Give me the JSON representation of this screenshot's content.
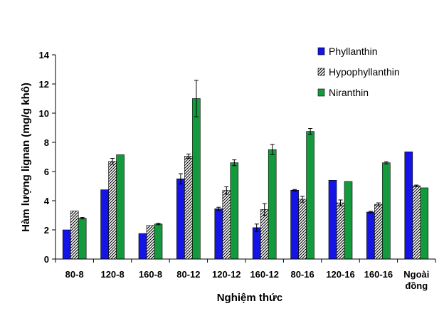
{
  "chart_data": {
    "type": "bar",
    "title": "",
    "xlabel": "Nghiệm thức",
    "ylabel": "Hàm lượng lignan (mg/g khô)",
    "ylim": [
      0,
      14
    ],
    "yticks": [
      "0",
      "2",
      "4",
      "6",
      "8",
      "10",
      "12",
      "14"
    ],
    "categories": [
      [
        "80-8"
      ],
      [
        "120-8"
      ],
      [
        "160-8"
      ],
      [
        "80-12"
      ],
      [
        "120-12"
      ],
      [
        "160-12"
      ],
      [
        "80-16"
      ],
      [
        "120-16"
      ],
      [
        "160-16"
      ],
      [
        "Ngoài",
        "đồng"
      ]
    ],
    "series": [
      {
        "name": "Phyllanthin",
        "color": "#1414e6",
        "pattern": "solid",
        "values": [
          2.0,
          4.75,
          1.75,
          5.5,
          3.45,
          2.15,
          4.72,
          5.4,
          3.22,
          7.35
        ],
        "errors": [
          0.0,
          0.0,
          0.0,
          0.35,
          0.1,
          0.25,
          0.05,
          0.0,
          0.05,
          0.0
        ]
      },
      {
        "name": "Hypophyllanthin",
        "color": "#ffffff",
        "pattern": "hatch",
        "values": [
          3.3,
          6.7,
          2.3,
          7.05,
          4.7,
          3.4,
          4.1,
          3.85,
          3.75,
          5.02
        ],
        "errors": [
          0.0,
          0.2,
          0.0,
          0.15,
          0.25,
          0.4,
          0.2,
          0.2,
          0.1,
          0.05
        ]
      },
      {
        "name": "Niranthin",
        "color": "#139a3c",
        "pattern": "solid",
        "values": [
          2.8,
          7.15,
          2.4,
          11.0,
          6.6,
          7.5,
          8.75,
          5.32,
          6.6,
          4.88
        ],
        "errors": [
          0.05,
          0.0,
          0.05,
          1.25,
          0.2,
          0.35,
          0.2,
          0.0,
          0.07,
          0.0
        ]
      }
    ],
    "legend_position": "top-right",
    "grid": false
  }
}
